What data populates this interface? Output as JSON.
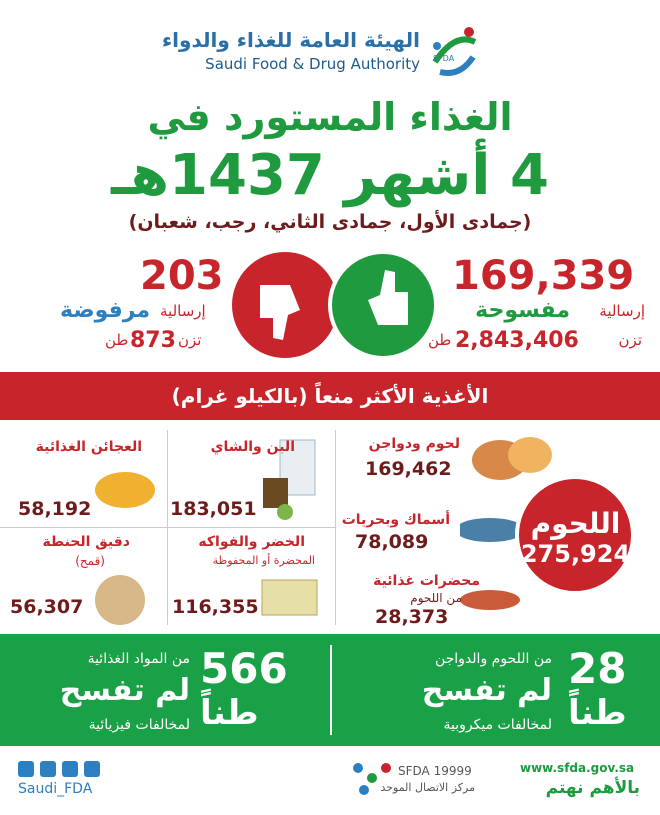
{
  "header": {
    "logo_arabic": "الهيئة العامة للغذاء والدواء",
    "logo_english": "Saudi Food & Drug Authority",
    "logo_abbr": "SFDA"
  },
  "title": {
    "line1": "الغذاء المستورد في",
    "line2": "4 أشهر 1437هـ",
    "subtitle": "(جمادى الأول، جمادى الثاني، رجب، شعبان)"
  },
  "stats": {
    "accepted": {
      "count": "169,339",
      "unit": "إرسالية",
      "status": "مفسوحة",
      "weight_prefix": "تزن",
      "weight": "2,843,406",
      "weight_unit": "طن"
    },
    "rejected": {
      "count": "203",
      "unit": "إرسالية",
      "status": "مرفوضة",
      "weight_prefix": "تزن",
      "weight": "873",
      "weight_unit": "طن"
    }
  },
  "banner": "الأغذية الأكثر منعاً (بالكيلو غرام)",
  "items": {
    "meats": {
      "label": "اللحوم",
      "value": "275,924"
    },
    "poultry": {
      "label": "لحوم ودواجن",
      "value": "169,462"
    },
    "seafood": {
      "label": "أسماك وبحريات",
      "value": "78,089"
    },
    "prepared_meat": {
      "label": "محضرات غذائية",
      "note": "من اللحوم",
      "value": "28,373"
    },
    "coffee_tea": {
      "label": "البن والشاي",
      "value": "183,051"
    },
    "pasta": {
      "label": "العجائن الغذائية",
      "value": "58,192"
    },
    "veg_fruit": {
      "label": "الخضر والفواكه",
      "note": "المحضرة أو المحفوظة",
      "value": "116,355"
    },
    "flour": {
      "label": "دقيق الحنطة",
      "note": "(قمح)",
      "value": "56,307"
    }
  },
  "rejections": {
    "physical": {
      "value": "566",
      "unit": "طناً",
      "desc": "من المواد الغذائية",
      "status": "لم تفسح",
      "reason": "لمخالفات فيزيائية"
    },
    "microbial": {
      "value": "28",
      "unit": "طناً",
      "desc": "من اللحوم والدواجن",
      "status": "لم تفسح",
      "reason": "لمخالفات ميكروبية"
    }
  },
  "footer": {
    "social_handle": "Saudi_FDA",
    "callcenter": "SFDA 19999",
    "callcenter_label": "مركز الاتصال الموحد",
    "website": "www.sfda.gov.sa",
    "slogan": "بالأهم نهتم"
  }
}
